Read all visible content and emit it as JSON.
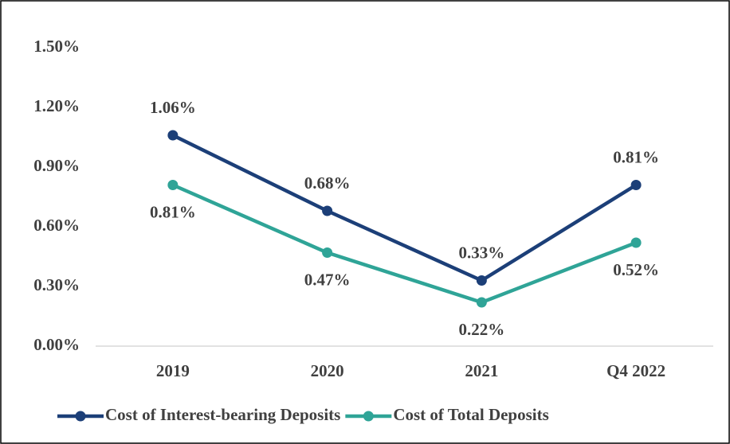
{
  "chart_data": {
    "type": "line",
    "categories": [
      "2019",
      "2020",
      "2021",
      "Q4 2022"
    ],
    "series": [
      {
        "name": "Cost of Interest-bearing Deposits",
        "color": "#1c3f78",
        "values": [
          1.06,
          0.68,
          0.33,
          0.81
        ],
        "value_labels": [
          "1.06%",
          "0.68%",
          "0.33%",
          "0.81%"
        ]
      },
      {
        "name": "Cost of Total Deposits",
        "color": "#2fa497",
        "values": [
          0.81,
          0.47,
          0.22,
          0.52
        ],
        "value_labels": [
          "0.81%",
          "0.47%",
          "0.22%",
          "0.52%"
        ]
      }
    ],
    "ylim": [
      0,
      1.5
    ],
    "yticks": [
      {
        "value": 0,
        "label": "0.00%"
      },
      {
        "value": 0.3,
        "label": "0.30%"
      },
      {
        "value": 0.6,
        "label": "0.60%"
      },
      {
        "value": 0.9,
        "label": "0.90%"
      },
      {
        "value": 1.2,
        "label": "1.20%"
      },
      {
        "value": 1.5,
        "label": "1.50%"
      }
    ],
    "grid": false,
    "legend": "bottom"
  }
}
